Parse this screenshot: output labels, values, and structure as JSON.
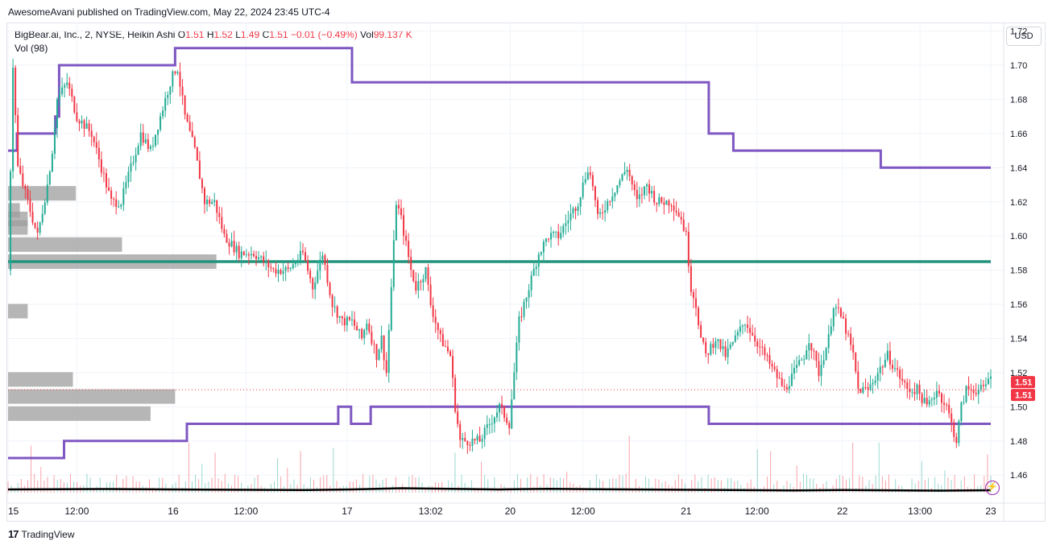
{
  "header": {
    "publisher": "AwesomeAvani published on TradingView.com, May 22, 2024 23:45 UTC-4"
  },
  "legend": {
    "symbol": "BigBear.ai, Inc., 2, NYSE, Heikin Ashi",
    "o_label": "O",
    "o_value": "1.51",
    "h_label": "H",
    "h_value": "1.52",
    "l_label": "L",
    "l_value": "1.49",
    "c_label": "C",
    "c_value": "1.51",
    "change": "−0.01 (−0.49%)",
    "vol_label": "Vol",
    "vol_value": "99.137 K",
    "volume_indicator": "Vol (98)"
  },
  "toolbar": {
    "currency_button": "USD"
  },
  "footer": {
    "brand": "TradingView",
    "logo_glyph": "17"
  },
  "icons": {
    "bolt": "lightning-icon"
  },
  "colors": {
    "up": "#22ab94",
    "down": "#f23645",
    "channel": "#7e57c2",
    "level": "#22937b",
    "profile": "#9e9e9e",
    "volume_ma": "#000000",
    "price_label_bg": "#f23645"
  },
  "chart_data": {
    "type": "candlestick",
    "style": "Heikin Ashi",
    "interval": "2",
    "ylim": [
      1.445,
      1.725
    ],
    "y_ticks": [
      "1.72",
      "1.70",
      "1.68",
      "1.66",
      "1.64",
      "1.62",
      "1.60",
      "1.58",
      "1.56",
      "1.54",
      "1.52",
      "1.50",
      "1.48",
      "1.46"
    ],
    "x_ticks": [
      {
        "label": "15",
        "t": 0.0
      },
      {
        "label": "12:00",
        "t": 0.07
      },
      {
        "label": "16",
        "t": 0.168
      },
      {
        "label": "12:00",
        "t": 0.242
      },
      {
        "label": "17",
        "t": 0.345
      },
      {
        "label": "13:02",
        "t": 0.43
      },
      {
        "label": "20",
        "t": 0.511
      },
      {
        "label": "12:00",
        "t": 0.585
      },
      {
        "label": "21",
        "t": 0.69
      },
      {
        "label": "12:00",
        "t": 0.762
      },
      {
        "label": "22",
        "t": 0.849
      },
      {
        "label": "13:00",
        "t": 0.928
      },
      {
        "label": "23",
        "t": 1.0
      }
    ],
    "last_price_labels": [
      "1.51",
      "1.51"
    ],
    "last_price": 1.51,
    "horizontal_level": 1.585,
    "upper_channel": [
      [
        0.0,
        1.65
      ],
      [
        0.009,
        1.65
      ],
      [
        0.009,
        1.66
      ],
      [
        0.048,
        1.66
      ],
      [
        0.048,
        1.67
      ],
      [
        0.052,
        1.67
      ],
      [
        0.052,
        1.7
      ],
      [
        0.17,
        1.7
      ],
      [
        0.17,
        1.71
      ],
      [
        0.35,
        1.71
      ],
      [
        0.35,
        1.69
      ],
      [
        0.713,
        1.69
      ],
      [
        0.713,
        1.66
      ],
      [
        0.738,
        1.66
      ],
      [
        0.738,
        1.65
      ],
      [
        0.888,
        1.65
      ],
      [
        0.888,
        1.64
      ],
      [
        1.0,
        1.64
      ]
    ],
    "lower_channel": [
      [
        0.0,
        1.47
      ],
      [
        0.057,
        1.47
      ],
      [
        0.057,
        1.48
      ],
      [
        0.182,
        1.48
      ],
      [
        0.182,
        1.49
      ],
      [
        0.336,
        1.49
      ],
      [
        0.336,
        1.5
      ],
      [
        0.349,
        1.5
      ],
      [
        0.349,
        1.49
      ],
      [
        0.369,
        1.49
      ],
      [
        0.369,
        1.5
      ],
      [
        0.713,
        1.5
      ],
      [
        0.713,
        1.49
      ],
      [
        1.0,
        1.49
      ]
    ],
    "price_path": [
      [
        0.0,
        1.58
      ],
      [
        0.005,
        1.7
      ],
      [
        0.01,
        1.64
      ],
      [
        0.02,
        1.62
      ],
      [
        0.03,
        1.6
      ],
      [
        0.04,
        1.63
      ],
      [
        0.045,
        1.65
      ],
      [
        0.05,
        1.68
      ],
      [
        0.06,
        1.69
      ],
      [
        0.07,
        1.67
      ],
      [
        0.085,
        1.66
      ],
      [
        0.095,
        1.64
      ],
      [
        0.105,
        1.62
      ],
      [
        0.115,
        1.62
      ],
      [
        0.125,
        1.64
      ],
      [
        0.135,
        1.66
      ],
      [
        0.145,
        1.65
      ],
      [
        0.155,
        1.67
      ],
      [
        0.165,
        1.69
      ],
      [
        0.172,
        1.7
      ],
      [
        0.18,
        1.67
      ],
      [
        0.19,
        1.65
      ],
      [
        0.2,
        1.62
      ],
      [
        0.21,
        1.62
      ],
      [
        0.22,
        1.6
      ],
      [
        0.235,
        1.59
      ],
      [
        0.25,
        1.59
      ],
      [
        0.27,
        1.58
      ],
      [
        0.285,
        1.58
      ],
      [
        0.3,
        1.59
      ],
      [
        0.31,
        1.57
      ],
      [
        0.32,
        1.59
      ],
      [
        0.33,
        1.56
      ],
      [
        0.34,
        1.55
      ],
      [
        0.35,
        1.55
      ],
      [
        0.36,
        1.54
      ],
      [
        0.365,
        1.55
      ],
      [
        0.375,
        1.53
      ],
      [
        0.38,
        1.54
      ],
      [
        0.385,
        1.52
      ],
      [
        0.39,
        1.57
      ],
      [
        0.395,
        1.62
      ],
      [
        0.4,
        1.61
      ],
      [
        0.41,
        1.58
      ],
      [
        0.415,
        1.57
      ],
      [
        0.425,
        1.58
      ],
      [
        0.43,
        1.56
      ],
      [
        0.435,
        1.55
      ],
      [
        0.44,
        1.54
      ],
      [
        0.45,
        1.53
      ],
      [
        0.455,
        1.5
      ],
      [
        0.46,
        1.48
      ],
      [
        0.47,
        1.48
      ],
      [
        0.48,
        1.48
      ],
      [
        0.49,
        1.49
      ],
      [
        0.5,
        1.5
      ],
      [
        0.51,
        1.49
      ],
      [
        0.515,
        1.52
      ],
      [
        0.52,
        1.55
      ],
      [
        0.53,
        1.57
      ],
      [
        0.54,
        1.59
      ],
      [
        0.55,
        1.6
      ],
      [
        0.56,
        1.6
      ],
      [
        0.57,
        1.61
      ],
      [
        0.58,
        1.62
      ],
      [
        0.59,
        1.64
      ],
      [
        0.595,
        1.63
      ],
      [
        0.6,
        1.61
      ],
      [
        0.61,
        1.62
      ],
      [
        0.62,
        1.63
      ],
      [
        0.63,
        1.64
      ],
      [
        0.64,
        1.62
      ],
      [
        0.65,
        1.63
      ],
      [
        0.66,
        1.62
      ],
      [
        0.675,
        1.62
      ],
      [
        0.685,
        1.61
      ],
      [
        0.69,
        1.6
      ],
      [
        0.695,
        1.57
      ],
      [
        0.7,
        1.56
      ],
      [
        0.705,
        1.54
      ],
      [
        0.71,
        1.53
      ],
      [
        0.72,
        1.54
      ],
      [
        0.73,
        1.53
      ],
      [
        0.74,
        1.54
      ],
      [
        0.75,
        1.55
      ],
      [
        0.76,
        1.54
      ],
      [
        0.77,
        1.53
      ],
      [
        0.78,
        1.52
      ],
      [
        0.79,
        1.51
      ],
      [
        0.8,
        1.52
      ],
      [
        0.81,
        1.53
      ],
      [
        0.815,
        1.54
      ],
      [
        0.825,
        1.52
      ],
      [
        0.835,
        1.54
      ],
      [
        0.84,
        1.56
      ],
      [
        0.85,
        1.55
      ],
      [
        0.86,
        1.53
      ],
      [
        0.865,
        1.51
      ],
      [
        0.875,
        1.51
      ],
      [
        0.885,
        1.52
      ],
      [
        0.895,
        1.53
      ],
      [
        0.905,
        1.52
      ],
      [
        0.915,
        1.51
      ],
      [
        0.925,
        1.51
      ],
      [
        0.935,
        1.5
      ],
      [
        0.945,
        1.51
      ],
      [
        0.955,
        1.5
      ],
      [
        0.96,
        1.49
      ],
      [
        0.965,
        1.48
      ],
      [
        0.97,
        1.5
      ],
      [
        0.975,
        1.51
      ],
      [
        0.985,
        1.51
      ],
      [
        0.993,
        1.51
      ],
      [
        1.0,
        1.52
      ]
    ],
    "volume_profile": [
      {
        "price": 1.625,
        "size": 0.069
      },
      {
        "price": 1.615,
        "size": 0.012
      },
      {
        "price": 1.61,
        "size": 0.02
      },
      {
        "price": 1.605,
        "size": 0.02
      },
      {
        "price": 1.595,
        "size": 0.116
      },
      {
        "price": 1.585,
        "size": 0.212
      },
      {
        "price": 1.556,
        "size": 0.02
      },
      {
        "price": 1.516,
        "size": 0.066
      },
      {
        "price": 1.506,
        "size": 0.17
      },
      {
        "price": 1.496,
        "size": 0.145
      }
    ],
    "volume_ma": [
      [
        0.0,
        0.4
      ],
      [
        0.1,
        0.45
      ],
      [
        0.2,
        0.38
      ],
      [
        0.3,
        0.32
      ],
      [
        0.35,
        0.4
      ],
      [
        0.4,
        0.55
      ],
      [
        0.5,
        0.4
      ],
      [
        0.55,
        0.48
      ],
      [
        0.6,
        0.42
      ],
      [
        0.7,
        0.35
      ],
      [
        0.8,
        0.28
      ],
      [
        0.85,
        0.32
      ],
      [
        0.95,
        0.25
      ],
      [
        1.0,
        0.3
      ]
    ]
  }
}
